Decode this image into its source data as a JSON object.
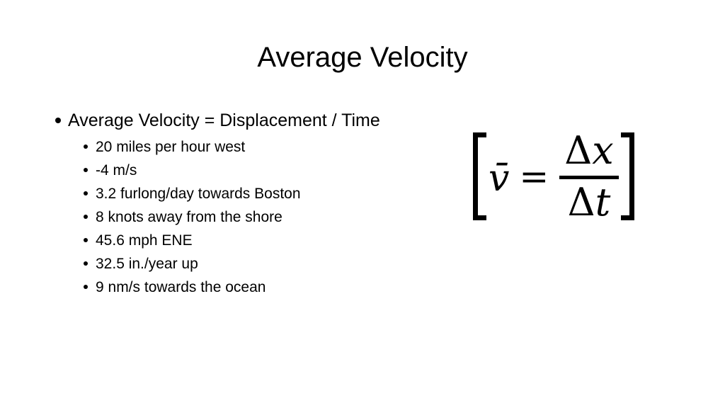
{
  "slide": {
    "title": "Average Velocity",
    "bullets": [
      {
        "label": "Average Velocity = Displacement / Time",
        "sub_items": [
          "20 miles per hour west",
          "-4 m/s",
          "3.2 furlong/day towards Boston",
          "8 knots away from the shore",
          "45.6 mph ENE",
          "32.5 in./year up",
          "9 nm/s towards the ocean"
        ]
      }
    ],
    "formula": {
      "bracket_left": "[",
      "bracket_right": "]",
      "v_symbol": "v̄",
      "equals": "=",
      "numerator_delta": "Δ",
      "numerator_var": "x",
      "denominator_delta": "Δ",
      "denominator_var": "t"
    },
    "colors": {
      "background": "#ffffff",
      "text": "#000000"
    }
  }
}
